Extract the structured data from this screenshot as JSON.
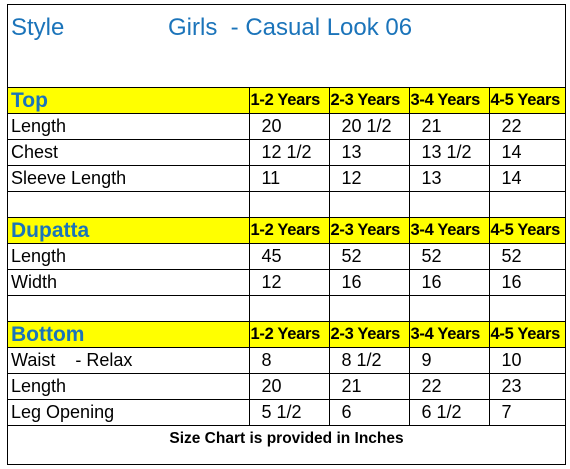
{
  "header": {
    "style_label": "Style",
    "title": "Girls  - Casual Look 06"
  },
  "sections": [
    {
      "name": "Top",
      "sizes": [
        "1-2 Years",
        "2-3 Years",
        "3-4 Years",
        "4-5 Years"
      ],
      "rows": [
        {
          "label": "Length",
          "values": [
            "20",
            "20 1/2",
            "21",
            "22"
          ]
        },
        {
          "label": "Chest",
          "values": [
            "12 1/2",
            "13",
            "13 1/2",
            "14"
          ]
        },
        {
          "label": "Sleeve Length",
          "values": [
            "11",
            "12",
            "13",
            "14"
          ]
        }
      ]
    },
    {
      "name": "Dupatta",
      "sizes": [
        "1-2 Years",
        "2-3 Years",
        "3-4 Years",
        "4-5 Years"
      ],
      "rows": [
        {
          "label": "Length",
          "values": [
            "45",
            "52",
            "52",
            "52"
          ]
        },
        {
          "label": "Width",
          "values": [
            "12",
            "16",
            "16",
            "16"
          ]
        }
      ]
    },
    {
      "name": "Bottom",
      "sizes": [
        "1-2 Years",
        "2-3 Years",
        "3-4 Years",
        "4-5 Years"
      ],
      "rows": [
        {
          "label": "Waist    - Relax",
          "values": [
            "8",
            "8 1/2",
            "9",
            "10"
          ]
        },
        {
          "label": "Length",
          "values": [
            "20",
            "21",
            "22",
            "23"
          ]
        },
        {
          "label": "Leg Opening",
          "values": [
            "5 1/2",
            "6",
            "6 1/2",
            "7"
          ]
        }
      ]
    }
  ],
  "footer": "Size Chart is provided in Inches",
  "colors": {
    "title": "#1b74ba",
    "header_fill": "#ffff00",
    "border": "#000000"
  }
}
